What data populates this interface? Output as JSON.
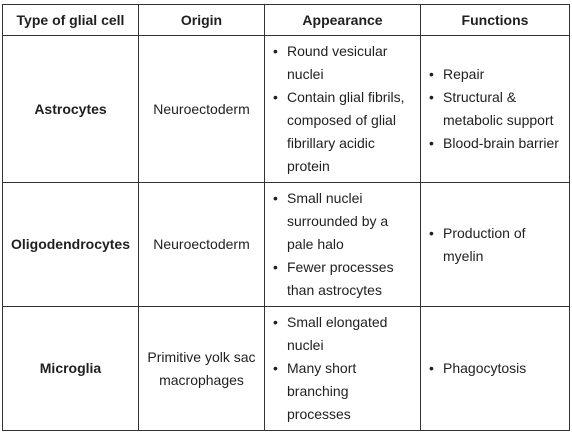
{
  "table": {
    "headers": [
      "Type of glial cell",
      "Origin",
      "Appearance",
      "Functions"
    ],
    "rows": [
      {
        "type": "Astrocytes",
        "origin": "Neuroectoderm",
        "appearance": [
          "Round vesicular nuclei",
          "Contain glial fibrils, composed of glial fibrillary acidic protein"
        ],
        "functions": [
          "Repair",
          "Structural & metabolic support",
          "Blood-brain barrier"
        ]
      },
      {
        "type": "Oligodendrocytes",
        "origin": "Neuroectoderm",
        "appearance": [
          "Small nuclei surrounded by a pale halo",
          "Fewer processes than astrocytes"
        ],
        "functions": [
          "Production of myelin"
        ]
      },
      {
        "type": "Microglia",
        "origin": "Primitive yolk sac macrophages",
        "appearance": [
          "Small elongated nuclei",
          "Many short branching processes"
        ],
        "functions": [
          "Phagocytosis"
        ]
      }
    ]
  }
}
